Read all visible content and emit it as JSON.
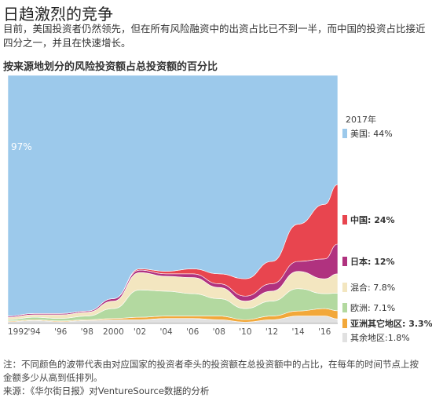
{
  "headline": "日趋激烈的竞争",
  "intro": "目前，美国投资者仍然领先，但在所有风险融资中的出资占比已不到一半，而中国的投资占比接近四分之一，并且在快速增长。",
  "note": "注：不同颜色的波带代表由对应国家的投资者牵头的投资额在总投资额中的占比，在每年的时间节点上按金额多少从高到低排列。",
  "source": "来源：《华尔街日报》对VentureSource数据的分析",
  "colors": {
    "us": "#9cc9eb",
    "china": "#e8454f",
    "japan": "#b0327f",
    "mixed": "#f3e6c0",
    "europe": "#b3d9a0",
    "asia": "#f2a83a",
    "other": "#e1e1e1"
  },
  "chart_data": {
    "type": "area",
    "title": "按来源地划分的风险投资额占总投资额的百分比",
    "legend_title": "2017年",
    "x": [
      1992,
      1994,
      1996,
      1998,
      2000,
      2002,
      2004,
      2006,
      2008,
      2010,
      2012,
      2014,
      2016,
      2017
    ],
    "x_tick_labels": [
      "1992",
      "'94",
      "'96",
      "'98",
      "2000",
      "'02",
      "'04",
      "'06",
      "'08",
      "'10",
      "'12",
      "'14",
      "'16"
    ],
    "start_label": "97%",
    "ylim": [
      0,
      100
    ],
    "series": [
      {
        "name": "美国",
        "legend_label": "美国: 44%",
        "color": "#9cc9eb",
        "values": [
          97,
          96,
          96,
          95,
          90,
          78,
          79,
          78,
          80,
          82,
          75,
          60,
          52,
          44
        ]
      },
      {
        "name": "中国",
        "legend_label": "中国: 24%",
        "color": "#e8454f",
        "values": [
          0,
          0,
          0,
          0,
          0,
          0.5,
          1,
          2,
          4,
          7,
          9,
          15,
          22,
          24
        ]
      },
      {
        "name": "日本",
        "legend_label": "日本: 12%",
        "color": "#b0327f",
        "values": [
          0.5,
          0.5,
          0.5,
          0.5,
          1,
          1,
          1,
          1.5,
          1.5,
          2,
          3,
          4,
          8,
          12
        ]
      },
      {
        "name": "混合",
        "legend_label": "混合: 7.8%",
        "color": "#f3e6c0",
        "values": [
          1,
          1,
          1.5,
          1.5,
          3,
          7,
          6,
          6.5,
          4.5,
          3,
          4,
          7,
          6,
          7.8
        ]
      },
      {
        "name": "欧洲",
        "legend_label": "欧洲: 7.1%",
        "color": "#b3d9a0",
        "values": [
          0.5,
          1,
          1,
          1.5,
          4,
          11,
          10,
          9,
          7,
          4.5,
          6,
          9,
          6,
          7.1
        ]
      },
      {
        "name": "亚洲其它地区",
        "legend_label": "亚洲其它地区: 3.3%",
        "color": "#f2a83a",
        "values": [
          0.3,
          0.3,
          0.3,
          0.3,
          0.5,
          1,
          1,
          1,
          1.5,
          1,
          1.5,
          2,
          3,
          3.3
        ]
      },
      {
        "name": "其余地区",
        "legend_label": "其余地区:1.8%",
        "color": "#e1e1e1",
        "values": [
          0.7,
          1.2,
          0.7,
          1.2,
          1.5,
          1.5,
          2,
          2,
          1.5,
          0.5,
          1.5,
          3,
          3,
          1.8
        ]
      }
    ]
  }
}
